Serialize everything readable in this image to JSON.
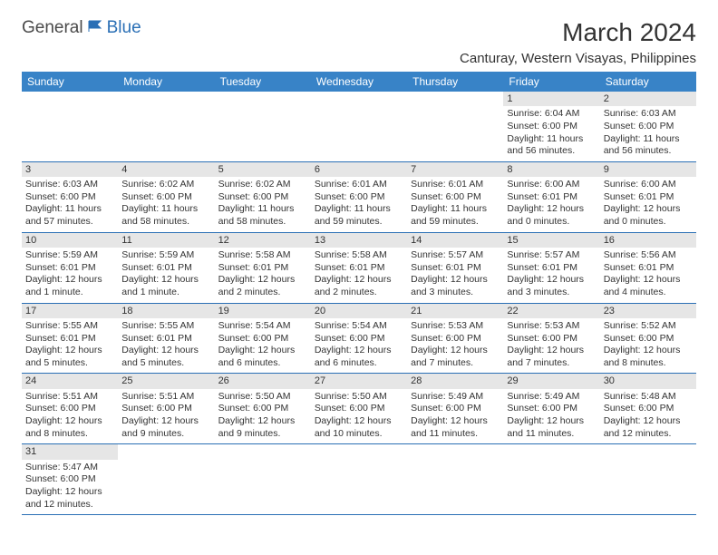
{
  "logo": {
    "part1": "General",
    "part2": "Blue"
  },
  "title": "March 2024",
  "location": "Canturay, Western Visayas, Philippines",
  "weekdays": [
    "Sunday",
    "Monday",
    "Tuesday",
    "Wednesday",
    "Thursday",
    "Friday",
    "Saturday"
  ],
  "colors": {
    "header_bg": "#3883c7",
    "header_text": "#ffffff",
    "border": "#2a6fb5",
    "day_num_bg": "#e6e6e6",
    "text": "#333333",
    "logo_blue": "#2a6fb5"
  },
  "grid": [
    [
      {
        "n": "",
        "sr": "",
        "ss": "",
        "dl": ""
      },
      {
        "n": "",
        "sr": "",
        "ss": "",
        "dl": ""
      },
      {
        "n": "",
        "sr": "",
        "ss": "",
        "dl": ""
      },
      {
        "n": "",
        "sr": "",
        "ss": "",
        "dl": ""
      },
      {
        "n": "",
        "sr": "",
        "ss": "",
        "dl": ""
      },
      {
        "n": "1",
        "sr": "Sunrise: 6:04 AM",
        "ss": "Sunset: 6:00 PM",
        "dl": "Daylight: 11 hours and 56 minutes."
      },
      {
        "n": "2",
        "sr": "Sunrise: 6:03 AM",
        "ss": "Sunset: 6:00 PM",
        "dl": "Daylight: 11 hours and 56 minutes."
      }
    ],
    [
      {
        "n": "3",
        "sr": "Sunrise: 6:03 AM",
        "ss": "Sunset: 6:00 PM",
        "dl": "Daylight: 11 hours and 57 minutes."
      },
      {
        "n": "4",
        "sr": "Sunrise: 6:02 AM",
        "ss": "Sunset: 6:00 PM",
        "dl": "Daylight: 11 hours and 58 minutes."
      },
      {
        "n": "5",
        "sr": "Sunrise: 6:02 AM",
        "ss": "Sunset: 6:00 PM",
        "dl": "Daylight: 11 hours and 58 minutes."
      },
      {
        "n": "6",
        "sr": "Sunrise: 6:01 AM",
        "ss": "Sunset: 6:00 PM",
        "dl": "Daylight: 11 hours and 59 minutes."
      },
      {
        "n": "7",
        "sr": "Sunrise: 6:01 AM",
        "ss": "Sunset: 6:00 PM",
        "dl": "Daylight: 11 hours and 59 minutes."
      },
      {
        "n": "8",
        "sr": "Sunrise: 6:00 AM",
        "ss": "Sunset: 6:01 PM",
        "dl": "Daylight: 12 hours and 0 minutes."
      },
      {
        "n": "9",
        "sr": "Sunrise: 6:00 AM",
        "ss": "Sunset: 6:01 PM",
        "dl": "Daylight: 12 hours and 0 minutes."
      }
    ],
    [
      {
        "n": "10",
        "sr": "Sunrise: 5:59 AM",
        "ss": "Sunset: 6:01 PM",
        "dl": "Daylight: 12 hours and 1 minute."
      },
      {
        "n": "11",
        "sr": "Sunrise: 5:59 AM",
        "ss": "Sunset: 6:01 PM",
        "dl": "Daylight: 12 hours and 1 minute."
      },
      {
        "n": "12",
        "sr": "Sunrise: 5:58 AM",
        "ss": "Sunset: 6:01 PM",
        "dl": "Daylight: 12 hours and 2 minutes."
      },
      {
        "n": "13",
        "sr": "Sunrise: 5:58 AM",
        "ss": "Sunset: 6:01 PM",
        "dl": "Daylight: 12 hours and 2 minutes."
      },
      {
        "n": "14",
        "sr": "Sunrise: 5:57 AM",
        "ss": "Sunset: 6:01 PM",
        "dl": "Daylight: 12 hours and 3 minutes."
      },
      {
        "n": "15",
        "sr": "Sunrise: 5:57 AM",
        "ss": "Sunset: 6:01 PM",
        "dl": "Daylight: 12 hours and 3 minutes."
      },
      {
        "n": "16",
        "sr": "Sunrise: 5:56 AM",
        "ss": "Sunset: 6:01 PM",
        "dl": "Daylight: 12 hours and 4 minutes."
      }
    ],
    [
      {
        "n": "17",
        "sr": "Sunrise: 5:55 AM",
        "ss": "Sunset: 6:01 PM",
        "dl": "Daylight: 12 hours and 5 minutes."
      },
      {
        "n": "18",
        "sr": "Sunrise: 5:55 AM",
        "ss": "Sunset: 6:01 PM",
        "dl": "Daylight: 12 hours and 5 minutes."
      },
      {
        "n": "19",
        "sr": "Sunrise: 5:54 AM",
        "ss": "Sunset: 6:00 PM",
        "dl": "Daylight: 12 hours and 6 minutes."
      },
      {
        "n": "20",
        "sr": "Sunrise: 5:54 AM",
        "ss": "Sunset: 6:00 PM",
        "dl": "Daylight: 12 hours and 6 minutes."
      },
      {
        "n": "21",
        "sr": "Sunrise: 5:53 AM",
        "ss": "Sunset: 6:00 PM",
        "dl": "Daylight: 12 hours and 7 minutes."
      },
      {
        "n": "22",
        "sr": "Sunrise: 5:53 AM",
        "ss": "Sunset: 6:00 PM",
        "dl": "Daylight: 12 hours and 7 minutes."
      },
      {
        "n": "23",
        "sr": "Sunrise: 5:52 AM",
        "ss": "Sunset: 6:00 PM",
        "dl": "Daylight: 12 hours and 8 minutes."
      }
    ],
    [
      {
        "n": "24",
        "sr": "Sunrise: 5:51 AM",
        "ss": "Sunset: 6:00 PM",
        "dl": "Daylight: 12 hours and 8 minutes."
      },
      {
        "n": "25",
        "sr": "Sunrise: 5:51 AM",
        "ss": "Sunset: 6:00 PM",
        "dl": "Daylight: 12 hours and 9 minutes."
      },
      {
        "n": "26",
        "sr": "Sunrise: 5:50 AM",
        "ss": "Sunset: 6:00 PM",
        "dl": "Daylight: 12 hours and 9 minutes."
      },
      {
        "n": "27",
        "sr": "Sunrise: 5:50 AM",
        "ss": "Sunset: 6:00 PM",
        "dl": "Daylight: 12 hours and 10 minutes."
      },
      {
        "n": "28",
        "sr": "Sunrise: 5:49 AM",
        "ss": "Sunset: 6:00 PM",
        "dl": "Daylight: 12 hours and 11 minutes."
      },
      {
        "n": "29",
        "sr": "Sunrise: 5:49 AM",
        "ss": "Sunset: 6:00 PM",
        "dl": "Daylight: 12 hours and 11 minutes."
      },
      {
        "n": "30",
        "sr": "Sunrise: 5:48 AM",
        "ss": "Sunset: 6:00 PM",
        "dl": "Daylight: 12 hours and 12 minutes."
      }
    ],
    [
      {
        "n": "31",
        "sr": "Sunrise: 5:47 AM",
        "ss": "Sunset: 6:00 PM",
        "dl": "Daylight: 12 hours and 12 minutes."
      },
      {
        "n": "",
        "sr": "",
        "ss": "",
        "dl": ""
      },
      {
        "n": "",
        "sr": "",
        "ss": "",
        "dl": ""
      },
      {
        "n": "",
        "sr": "",
        "ss": "",
        "dl": ""
      },
      {
        "n": "",
        "sr": "",
        "ss": "",
        "dl": ""
      },
      {
        "n": "",
        "sr": "",
        "ss": "",
        "dl": ""
      },
      {
        "n": "",
        "sr": "",
        "ss": "",
        "dl": ""
      }
    ]
  ]
}
